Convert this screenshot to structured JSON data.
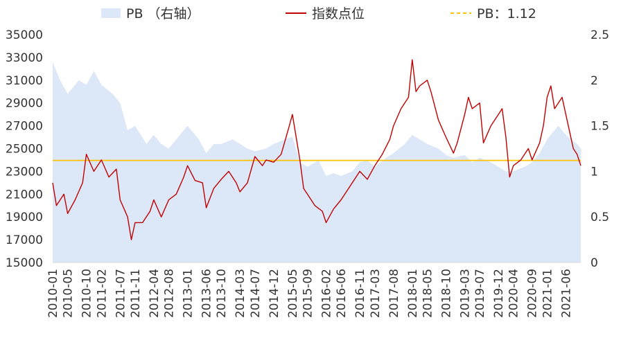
{
  "colors": {
    "area": "#dce8f8",
    "index_line": "#c00000",
    "pb_ref_line": "#ffc000",
    "text": "#333333"
  },
  "legend": {
    "area_label": "PB （右轴）",
    "line_label": "指数点位",
    "ref_label": "PB：1.12"
  },
  "chart_data": {
    "type": "line",
    "title": "",
    "xlabel": "",
    "ylabel": "",
    "legend_position": "top",
    "grid": false,
    "x_tick_labels": [
      "2010-01",
      "2010-05",
      "2010-10",
      "2011-02",
      "2011-07",
      "2011-11",
      "2012-04",
      "2012-08",
      "2013-01",
      "2013-06",
      "2013-10",
      "2014-03",
      "2014-07",
      "2014-12",
      "2015-05",
      "2015-09",
      "2016-02",
      "2016-06",
      "2016-11",
      "2017-03",
      "2017-08",
      "2018-01",
      "2018-05",
      "2018-10",
      "2019-03",
      "2019-07",
      "2019-12",
      "2020-04",
      "2020-09",
      "2021-01",
      "2021-06"
    ],
    "y_left": {
      "min": 15000,
      "max": 35000,
      "ticks": [
        15000,
        17000,
        19000,
        21000,
        23000,
        25000,
        27000,
        29000,
        31000,
        33000,
        35000
      ]
    },
    "y_right": {
      "min": 0,
      "max": 2.5,
      "ticks": [
        0,
        0.5,
        1,
        1.5,
        2,
        2.5
      ]
    },
    "reference_line": {
      "name": "PB：1.12",
      "value": 1.12,
      "axis": "right"
    },
    "series": [
      {
        "name": "PB （右轴）",
        "type": "area",
        "axis": "right",
        "x": [
          "2010-01",
          "2010-03",
          "2010-05",
          "2010-08",
          "2010-10",
          "2010-12",
          "2011-02",
          "2011-05",
          "2011-07",
          "2011-09",
          "2011-11",
          "2012-02",
          "2012-04",
          "2012-06",
          "2012-08",
          "2012-11",
          "2013-01",
          "2013-04",
          "2013-06",
          "2013-08",
          "2013-10",
          "2014-01",
          "2014-03",
          "2014-05",
          "2014-07",
          "2014-10",
          "2014-12",
          "2015-03",
          "2015-05",
          "2015-07",
          "2015-09",
          "2015-12",
          "2016-02",
          "2016-04",
          "2016-06",
          "2016-09",
          "2016-11",
          "2017-01",
          "2017-03",
          "2017-06",
          "2017-08",
          "2017-11",
          "2018-01",
          "2018-03",
          "2018-05",
          "2018-08",
          "2018-10",
          "2018-12",
          "2019-03",
          "2019-05",
          "2019-07",
          "2019-10",
          "2019-12",
          "2020-02",
          "2020-04",
          "2020-07",
          "2020-09",
          "2020-11",
          "2021-01",
          "2021-04",
          "2021-06",
          "2021-09",
          "2021-10"
        ],
        "values": [
          2.2,
          2.0,
          1.85,
          2.0,
          1.95,
          2.1,
          1.95,
          1.85,
          1.75,
          1.45,
          1.5,
          1.3,
          1.4,
          1.3,
          1.25,
          1.4,
          1.5,
          1.35,
          1.2,
          1.3,
          1.3,
          1.35,
          1.3,
          1.25,
          1.22,
          1.25,
          1.3,
          1.35,
          1.38,
          1.1,
          1.05,
          1.12,
          0.95,
          0.98,
          0.95,
          1.0,
          1.1,
          1.12,
          1.05,
          1.15,
          1.2,
          1.3,
          1.4,
          1.35,
          1.3,
          1.25,
          1.18,
          1.15,
          1.18,
          1.1,
          1.15,
          1.1,
          1.05,
          1.0,
          1.0,
          1.05,
          1.1,
          1.2,
          1.35,
          1.5,
          1.4,
          1.3,
          1.25
        ]
      },
      {
        "name": "指数点位",
        "type": "line",
        "axis": "left",
        "x": [
          "2010-01",
          "2010-02",
          "2010-04",
          "2010-05",
          "2010-07",
          "2010-09",
          "2010-10",
          "2010-12",
          "2011-02",
          "2011-04",
          "2011-06",
          "2011-07",
          "2011-09",
          "2011-10",
          "2011-11",
          "2012-01",
          "2012-03",
          "2012-04",
          "2012-06",
          "2012-08",
          "2012-10",
          "2012-12",
          "2013-01",
          "2013-03",
          "2013-05",
          "2013-06",
          "2013-08",
          "2013-10",
          "2013-12",
          "2014-02",
          "2014-03",
          "2014-05",
          "2014-07",
          "2014-09",
          "2014-10",
          "2014-12",
          "2015-02",
          "2015-04",
          "2015-05",
          "2015-06",
          "2015-07",
          "2015-08",
          "2015-09",
          "2015-11",
          "2016-01",
          "2016-02",
          "2016-04",
          "2016-06",
          "2016-08",
          "2016-10",
          "2016-11",
          "2017-01",
          "2017-03",
          "2017-05",
          "2017-07",
          "2017-08",
          "2017-10",
          "2017-12",
          "2018-01",
          "2018-02",
          "2018-03",
          "2018-05",
          "2018-06",
          "2018-08",
          "2018-10",
          "2018-12",
          "2019-01",
          "2019-03",
          "2019-04",
          "2019-05",
          "2019-07",
          "2019-08",
          "2019-10",
          "2019-12",
          "2020-01",
          "2020-02",
          "2020-03",
          "2020-04",
          "2020-06",
          "2020-08",
          "2020-09",
          "2020-11",
          "2020-12",
          "2021-01",
          "2021-02",
          "2021-03",
          "2021-05",
          "2021-06",
          "2021-07",
          "2021-08",
          "2021-09",
          "2021-10"
        ],
        "values": [
          22000,
          20000,
          21000,
          19300,
          20500,
          22000,
          24500,
          23000,
          24000,
          22500,
          23200,
          20500,
          19000,
          17000,
          18500,
          18500,
          19500,
          20500,
          19000,
          20500,
          21000,
          22500,
          23500,
          22200,
          22000,
          19800,
          21500,
          22300,
          23000,
          22000,
          21200,
          22000,
          24300,
          23500,
          24000,
          23800,
          24500,
          26800,
          28000,
          26000,
          24000,
          21500,
          21000,
          20000,
          19500,
          18500,
          19700,
          20500,
          21500,
          22500,
          23000,
          22300,
          23500,
          24500,
          25800,
          27000,
          28500,
          29500,
          32800,
          30000,
          30500,
          31000,
          30000,
          27500,
          26000,
          24600,
          25500,
          28000,
          29500,
          28500,
          29000,
          25500,
          27000,
          28000,
          28500,
          26000,
          22500,
          23500,
          24000,
          25000,
          24000,
          25500,
          27000,
          29500,
          30500,
          28500,
          29500,
          28000,
          26500,
          25000,
          24500,
          23500
        ]
      }
    ]
  }
}
